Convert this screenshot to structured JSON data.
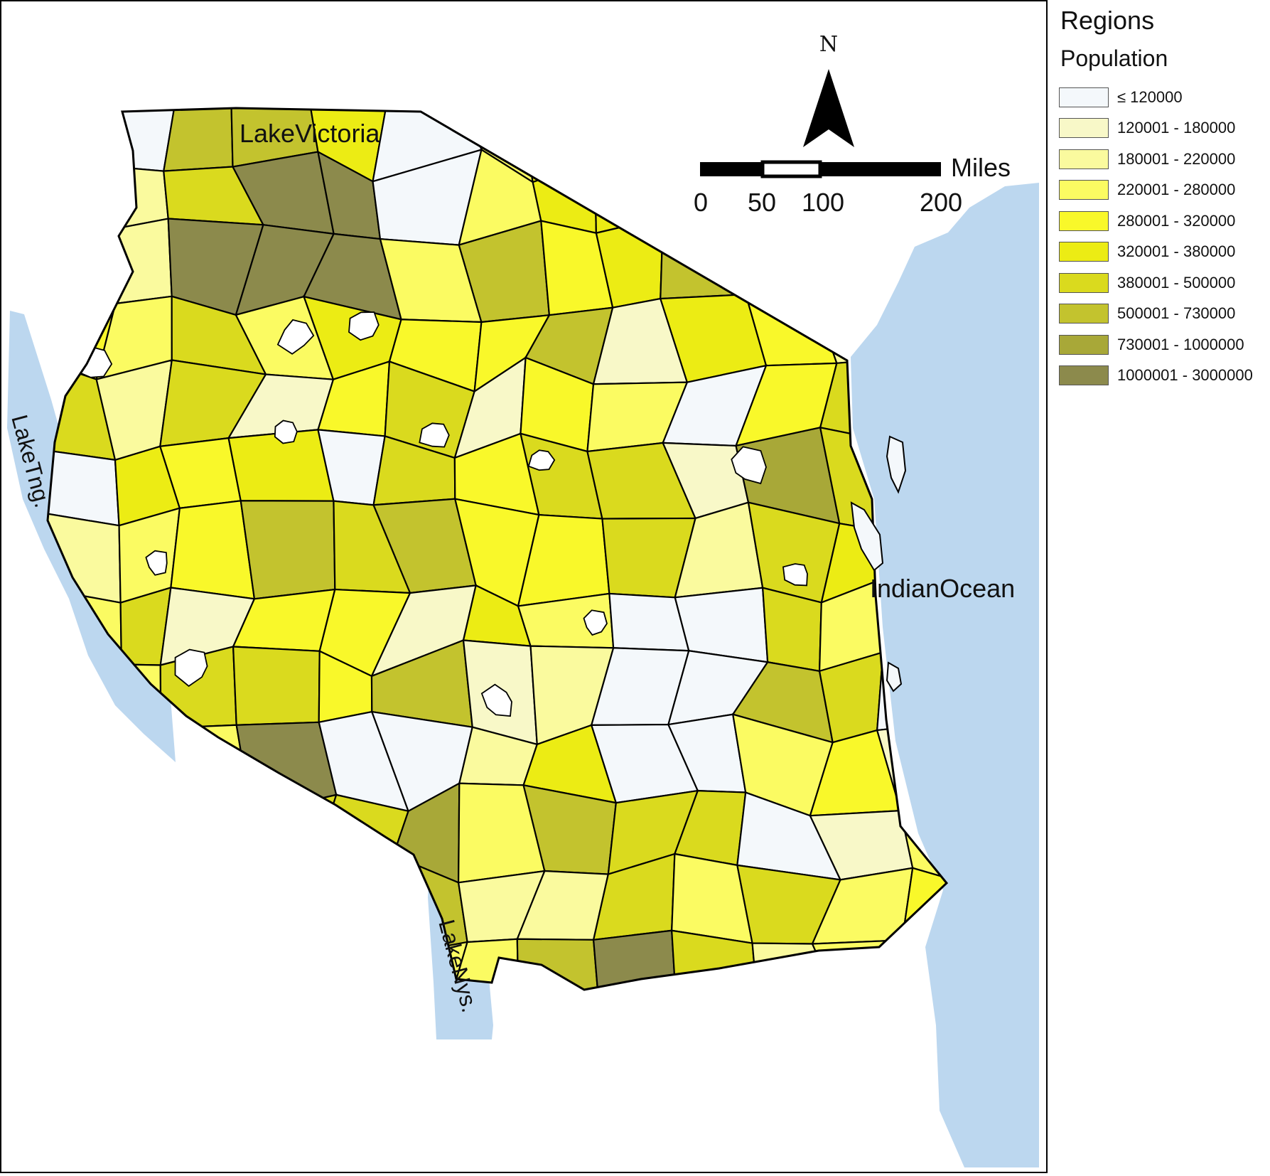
{
  "legend": {
    "title": "Regions",
    "subtitle": "Population",
    "classes": [
      {
        "label": "≤ 120000",
        "color": "#f4f8fb"
      },
      {
        "label": "120001 - 180000",
        "color": "#f8f8c8"
      },
      {
        "label": "180001 - 220000",
        "color": "#fafa9e"
      },
      {
        "label": "220001 - 280000",
        "color": "#fbfb62"
      },
      {
        "label": "280001 - 320000",
        "color": "#f9f82a"
      },
      {
        "label": "320001 - 380000",
        "color": "#ecec14"
      },
      {
        "label": "380001 - 500000",
        "color": "#dada1e"
      },
      {
        "label": "500001 - 730000",
        "color": "#c3c32e"
      },
      {
        "label": "730001 - 1000000",
        "color": "#a8a838"
      },
      {
        "label": "1000001 - 3000000",
        "color": "#8c8a4c"
      }
    ]
  },
  "north_arrow": {
    "label": "N"
  },
  "scale_bar": {
    "unit": "Miles",
    "ticks": [
      "0",
      "50",
      "100",
      "200"
    ]
  },
  "water_labels": {
    "lake_victoria": "LakeVictoria",
    "lake_tanganyika": "LakeTng.",
    "lake_nyasa": "LakeNys.",
    "indian_ocean": "IndianOcean"
  },
  "colors": {
    "water": "#bcd7ef",
    "boundary": "#000000",
    "no_data": "#ffffff"
  }
}
